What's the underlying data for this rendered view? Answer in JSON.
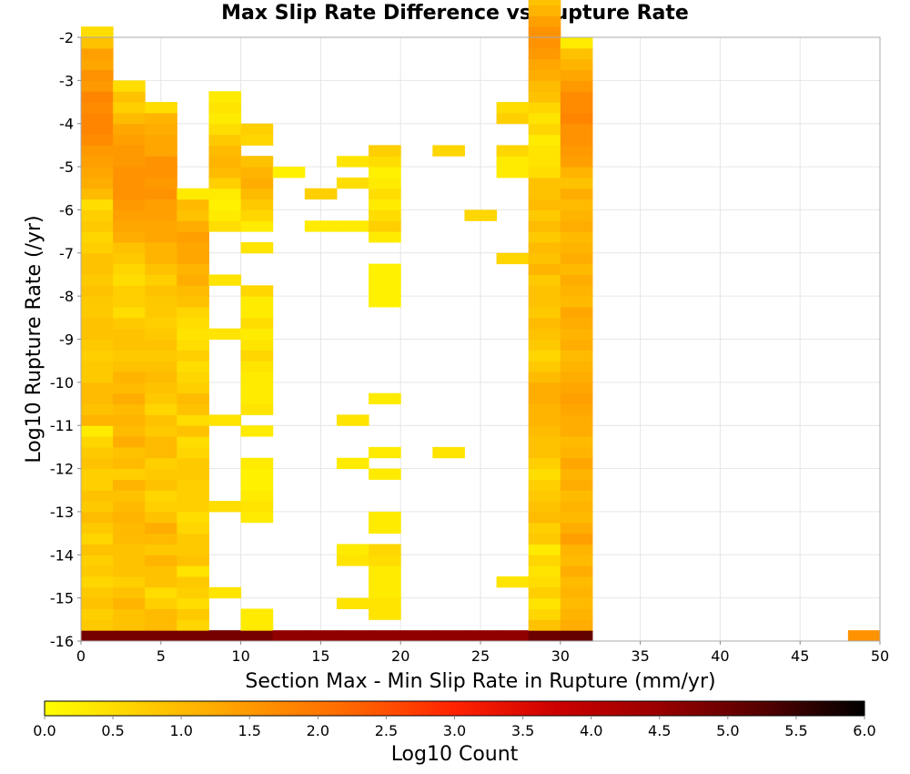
{
  "chart_data": {
    "type": "heatmap",
    "title": "Max Slip Rate Difference vs Rupture Rate",
    "xlabel": "Section Max - Min Slip Rate in Rupture (mm/yr)",
    "ylabel": "Log10 Rupture Rate (/yr)",
    "xlim": [
      0,
      50
    ],
    "ylim": [
      -16,
      -2
    ],
    "x_ticks": [
      "0",
      "5",
      "10",
      "15",
      "20",
      "25",
      "30",
      "35",
      "40",
      "45",
      "50"
    ],
    "y_ticks": [
      "-2",
      "-3",
      "-4",
      "-5",
      "-6",
      "-7",
      "-8",
      "-9",
      "-10",
      "-11",
      "-12",
      "-13",
      "-14",
      "-15",
      "-16"
    ],
    "grid": true,
    "bin_width_x": 2,
    "bin_width_y": 0.25,
    "colorbar": {
      "label": "Log10 Count",
      "range": [
        0,
        6
      ],
      "ticks": [
        "0.0",
        "0.5",
        "1.0",
        "1.5",
        "2.0",
        "2.5",
        "3.0",
        "3.5",
        "4.0",
        "4.5",
        "5.0",
        "5.5",
        "6.0"
      ],
      "colors": [
        "#ffff00",
        "#ffcc00",
        "#ff9900",
        "#ff6600",
        "#ff2200",
        "#cc0000",
        "#990000",
        "#550000",
        "#000000"
      ]
    },
    "columns": [
      {
        "x": 0,
        "y_start": -16,
        "values": [
          4.9,
          0.8,
          0.7,
          0.9,
          0.8,
          0.6,
          0.8,
          0.7,
          0.9,
          0.6,
          0.8,
          1.0,
          0.8,
          0.9,
          0.7,
          0.7,
          0.9,
          0.8,
          0.6,
          0.3,
          1.1,
          0.9,
          1.0,
          1.0,
          0.8,
          0.8,
          0.7,
          0.8,
          0.9,
          0.9,
          0.8,
          0.8,
          0.9,
          0.8,
          0.9,
          0.9,
          0.7,
          0.6,
          0.8,
          0.7,
          0.5,
          1.0,
          1.2,
          1.3,
          1.4,
          1.5,
          1.7,
          1.8,
          1.8,
          1.7,
          1.8,
          1.5,
          1.6,
          1.3,
          1.4,
          0.9,
          0.5
        ]
      },
      {
        "x": 2,
        "y_start": -16,
        "values": [
          4.9,
          0.9,
          0.9,
          1.1,
          0.9,
          0.7,
          0.9,
          0.9,
          0.9,
          1.0,
          1.0,
          1.1,
          1.0,
          0.9,
          1.1,
          0.7,
          1.0,
          0.9,
          1.2,
          1.0,
          1.1,
          1.0,
          1.2,
          1.0,
          1.1,
          0.9,
          0.8,
          0.9,
          0.9,
          0.8,
          0.5,
          0.7,
          0.7,
          0.5,
          0.6,
          0.8,
          0.9,
          1.2,
          1.3,
          1.4,
          1.5,
          1.6,
          1.6,
          1.6,
          1.5,
          1.5,
          1.4,
          1.3,
          1.0,
          0.7,
          0.9,
          0.5
        ]
      },
      {
        "x": 4,
        "y_start": -16,
        "values": [
          4.9,
          1.0,
          1.0,
          0.7,
          0.5,
          0.9,
          0.9,
          1.1,
          0.8,
          1.0,
          1.2,
          0.9,
          0.7,
          0.6,
          0.9,
          0.8,
          0.7,
          1.0,
          1.0,
          0.8,
          0.9,
          0.6,
          0.8,
          0.9,
          1.0,
          0.9,
          0.8,
          0.9,
          0.8,
          0.7,
          0.8,
          0.8,
          0.9,
          0.7,
          0.9,
          1.1,
          1.1,
          1.3,
          1.3,
          1.4,
          1.4,
          1.6,
          1.5,
          1.6,
          1.6,
          1.3,
          1.3,
          1.2,
          1.1,
          0.5
        ]
      },
      {
        "x": 6,
        "y_start": -16,
        "values": [
          4.9,
          0.6,
          0.8,
          0.5,
          0.7,
          0.8,
          0.4,
          0.9,
          0.8,
          0.8,
          0.6,
          0.5,
          0.7,
          0.7,
          0.7,
          0.8,
          0.8,
          0.6,
          0.5,
          0.9,
          0.5,
          0.9,
          1.0,
          0.7,
          0.6,
          0.5,
          0.7,
          0.5,
          0.4,
          0.5,
          0.6,
          0.9,
          1.0,
          1.2,
          1.1,
          1.3,
          1.3,
          1.4,
          1.2,
          0.9,
          1.0,
          0.3
        ]
      },
      {
        "x": 8,
        "y_start": -16,
        "values": [
          4.9
        ],
        "extra": [
          {
            "y": -15.0,
            "v": 0.4
          },
          {
            "y": -13.0,
            "v": 0.5
          },
          {
            "y": -11.0,
            "v": 0.4
          },
          {
            "y": -9.0,
            "v": 0.4
          },
          {
            "y": -7.75,
            "v": 0.4
          },
          {
            "y": -6.5,
            "v": 0.5
          },
          {
            "y": -6.25,
            "v": 0.3
          },
          {
            "y": -6.0,
            "v": 0.2
          },
          {
            "y": -5.75,
            "v": 0.3
          },
          {
            "y": -5.5,
            "v": 0.7
          },
          {
            "y": -5.25,
            "v": 1.0
          },
          {
            "y": -5.0,
            "v": 1.1
          },
          {
            "y": -4.75,
            "v": 1.0
          },
          {
            "y": -4.5,
            "v": 0.8
          },
          {
            "y": -4.25,
            "v": 0.5
          },
          {
            "y": -4.0,
            "v": 0.3
          },
          {
            "y": -3.75,
            "v": 0.4
          },
          {
            "y": -3.5,
            "v": 0.3
          }
        ]
      },
      {
        "x": 10,
        "y_start": -16,
        "values": [
          4.9
        ],
        "extra": [
          {
            "y": -15.75,
            "v": 0.3
          },
          {
            "y": -15.5,
            "v": 0.3
          },
          {
            "y": -13.25,
            "v": 0.3
          },
          {
            "y": -13.0,
            "v": 0.4
          },
          {
            "y": -12.75,
            "v": 0.3
          },
          {
            "y": -12.5,
            "v": 0.2
          },
          {
            "y": -12.25,
            "v": 0.2
          },
          {
            "y": -12.0,
            "v": 0.3
          },
          {
            "y": -11.25,
            "v": 0.3
          },
          {
            "y": -10.75,
            "v": 0.4
          },
          {
            "y": -10.5,
            "v": 0.3
          },
          {
            "y": -10.25,
            "v": 0.3
          },
          {
            "y": -10.0,
            "v": 0.3
          },
          {
            "y": -9.75,
            "v": 0.4
          },
          {
            "y": -9.5,
            "v": 0.6
          },
          {
            "y": -9.25,
            "v": 0.4
          },
          {
            "y": -9.0,
            "v": 0.3
          },
          {
            "y": -8.75,
            "v": 0.5
          },
          {
            "y": -8.5,
            "v": 0.3
          },
          {
            "y": -8.25,
            "v": 0.3
          },
          {
            "y": -8.0,
            "v": 0.6
          },
          {
            "y": -7.0,
            "v": 0.4
          },
          {
            "y": -6.5,
            "v": 0.3
          },
          {
            "y": -6.25,
            "v": 0.6
          },
          {
            "y": -6.0,
            "v": 0.8
          },
          {
            "y": -5.75,
            "v": 1.0
          },
          {
            "y": -5.5,
            "v": 1.2
          },
          {
            "y": -5.25,
            "v": 1.1
          },
          {
            "y": -5.0,
            "v": 0.9
          },
          {
            "y": -4.5,
            "v": 0.6
          },
          {
            "y": -4.25,
            "v": 0.7
          }
        ]
      },
      {
        "x": 12,
        "y_start": -16,
        "values": [
          4.6
        ],
        "extra": [
          {
            "y": -5.25,
            "v": 0.2
          }
        ]
      },
      {
        "x": 14,
        "y_start": -16,
        "values": [
          4.6
        ],
        "extra": [
          {
            "y": -6.5,
            "v": 0.3
          },
          {
            "y": -5.75,
            "v": 0.7
          }
        ]
      },
      {
        "x": 16,
        "y_start": -16,
        "values": [
          4.6
        ],
        "extra": [
          {
            "y": -15.25,
            "v": 0.4
          },
          {
            "y": -14.25,
            "v": 0.4
          },
          {
            "y": -14.0,
            "v": 0.3
          },
          {
            "y": -12.0,
            "v": 0.3
          },
          {
            "y": -11.0,
            "v": 0.4
          },
          {
            "y": -6.5,
            "v": 0.3
          },
          {
            "y": -5.5,
            "v": 0.5
          },
          {
            "y": -5.0,
            "v": 0.4
          }
        ]
      },
      {
        "x": 18,
        "y_start": -16,
        "values": [
          4.6
        ],
        "extra": [
          {
            "y": -15.5,
            "v": 0.4
          },
          {
            "y": -15.25,
            "v": 0.4
          },
          {
            "y": -15.0,
            "v": 0.3
          },
          {
            "y": -14.75,
            "v": 0.3
          },
          {
            "y": -14.5,
            "v": 0.3
          },
          {
            "y": -14.25,
            "v": 0.5
          },
          {
            "y": -14.0,
            "v": 0.6
          },
          {
            "y": -13.5,
            "v": 0.3
          },
          {
            "y": -13.25,
            "v": 0.3
          },
          {
            "y": -12.25,
            "v": 0.3
          },
          {
            "y": -11.75,
            "v": 0.3
          },
          {
            "y": -10.5,
            "v": 0.3
          },
          {
            "y": -8.25,
            "v": 0.2
          },
          {
            "y": -8.0,
            "v": 0.2
          },
          {
            "y": -7.75,
            "v": 0.2
          },
          {
            "y": -7.5,
            "v": 0.2
          },
          {
            "y": -6.75,
            "v": 0.3
          },
          {
            "y": -6.5,
            "v": 0.7
          },
          {
            "y": -6.25,
            "v": 0.5
          },
          {
            "y": -6.0,
            "v": 0.3
          },
          {
            "y": -5.75,
            "v": 0.5
          },
          {
            "y": -5.5,
            "v": 0.3
          },
          {
            "y": -5.25,
            "v": 0.2
          },
          {
            "y": -5.0,
            "v": 0.5
          },
          {
            "y": -4.75,
            "v": 0.7
          }
        ]
      },
      {
        "x": 20,
        "y_start": -16,
        "values": [
          4.6
        ]
      },
      {
        "x": 22,
        "y_start": -16,
        "values": [
          4.6
        ],
        "extra": [
          {
            "y": -11.75,
            "v": 0.4
          },
          {
            "y": -4.75,
            "v": 0.6
          }
        ]
      },
      {
        "x": 24,
        "y_start": -16,
        "values": [
          4.6
        ],
        "extra": [
          {
            "y": -6.25,
            "v": 0.6
          }
        ]
      },
      {
        "x": 26,
        "y_start": -16,
        "values": [
          4.6
        ],
        "extra": [
          {
            "y": -14.75,
            "v": 0.4
          },
          {
            "y": -7.25,
            "v": 0.6
          },
          {
            "y": -5.25,
            "v": 0.3
          },
          {
            "y": -5.0,
            "v": 0.3
          },
          {
            "y": -4.75,
            "v": 0.6
          },
          {
            "y": -4.0,
            "v": 0.7
          },
          {
            "y": -3.75,
            "v": 0.5
          }
        ]
      },
      {
        "x": 28,
        "y_start": -16,
        "values": [
          5.0,
          0.9,
          0.6,
          0.4,
          0.7,
          0.5,
          0.4,
          0.6,
          0.3,
          0.8,
          0.7,
          1.0,
          0.9,
          0.8,
          0.7,
          0.5,
          0.7,
          0.9,
          0.9,
          1.0,
          1.1,
          1.1,
          1.2,
          1.2,
          1.0,
          0.8,
          0.6,
          0.8,
          0.9,
          1.0,
          0.8,
          0.9,
          0.9,
          0.8,
          1.1,
          0.9,
          1.0,
          0.8,
          1.0,
          0.8,
          1.0,
          0.9,
          0.9,
          0.5,
          0.4,
          0.4,
          0.3,
          0.6,
          0.4,
          0.6,
          0.9,
          1.0,
          1.2,
          1.3,
          1.5,
          1.6,
          1.6,
          1.4,
          1.1,
          0.9
        ]
      },
      {
        "x": 30,
        "y_start": -16,
        "values": [
          5.1,
          1.2,
          1.1,
          1.0,
          1.1,
          1.0,
          1.2,
          1.0,
          1.1,
          1.4,
          1.2,
          1.0,
          1.1,
          1.0,
          1.2,
          1.1,
          1.3,
          1.1,
          1.0,
          1.2,
          1.2,
          1.3,
          1.4,
          1.3,
          1.2,
          1.1,
          1.0,
          1.2,
          1.1,
          1.2,
          1.3,
          1.0,
          1.1,
          1.2,
          1.0,
          1.2,
          1.1,
          1.0,
          1.2,
          1.1,
          1.0,
          1.2,
          0.9,
          1.1,
          1.4,
          1.5,
          1.6,
          1.6,
          1.8,
          1.7,
          1.7,
          1.5,
          1.3,
          1.1,
          0.9,
          0.3
        ]
      },
      {
        "x": 48,
        "y_start": -16,
        "values": [
          1.6
        ]
      }
    ]
  }
}
